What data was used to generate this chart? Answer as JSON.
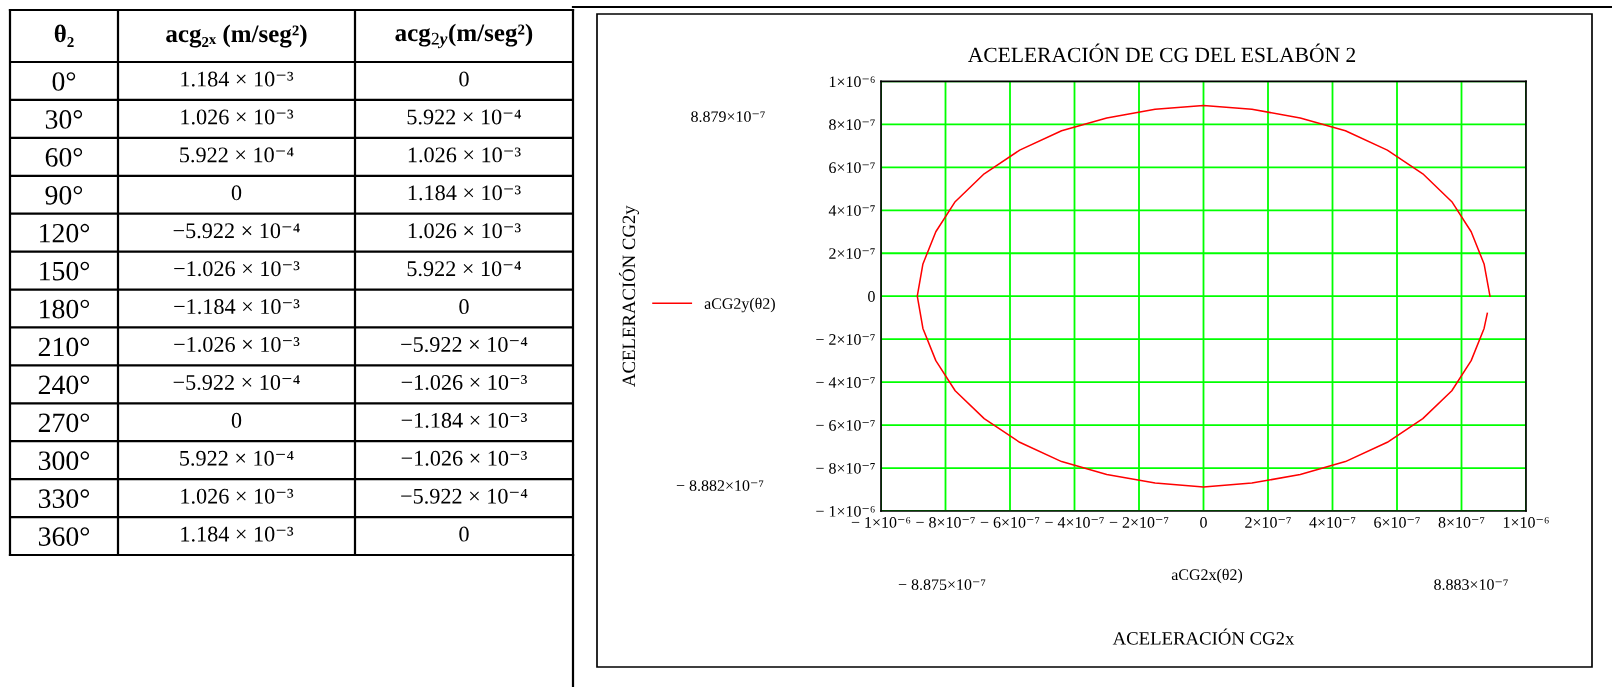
{
  "chart_data": [
    {
      "type": "heatmap",
      "ylabel": "θ₂",
      "categories": [
        "acg₂ₓ (m/seg²)",
        "acg$_{2y}$(m/seg²)"
      ],
      "y_categories": [
        "0°",
        "30°",
        "60°",
        "90°",
        "120°",
        "150°",
        "180°",
        "210°",
        "240°",
        "270°",
        "300°",
        "330°",
        "360°"
      ],
      "cells": [
        [
          null,
          null
        ],
        [
          null,
          null
        ],
        [
          null,
          null
        ],
        [
          null,
          null
        ],
        [
          null,
          null
        ],
        [
          null,
          null
        ],
        [
          null,
          null
        ],
        [
          null,
          null
        ],
        [
          null,
          null
        ],
        [
          null,
          null
        ],
        [
          null,
          null
        ],
        [
          null,
          null
        ],
        [
          null,
          null
        ]
      ],
      "cell_labels": [
        [
          "1.184 × 10⁻³",
          "0"
        ],
        [
          "1.026 × 10⁻³",
          "5.922 × 10⁻⁴"
        ],
        [
          "5.922 × 10⁻⁴",
          "1.026 × 10⁻³"
        ],
        [
          "0",
          "1.184 × 10⁻³"
        ],
        [
          "−5.922 × 10⁻⁴",
          "1.026 × 10⁻³"
        ],
        [
          "−1.026 × 10⁻³",
          "5.922 × 10⁻⁴"
        ],
        [
          "−1.184 × 10⁻³",
          "0"
        ],
        [
          "−1.026 × 10⁻³",
          "−5.922 × 10⁻⁴"
        ],
        [
          "−5.922 × 10⁻⁴",
          "−1.026 × 10⁻³"
        ],
        [
          "0",
          "−1.184 × 10⁻³"
        ],
        [
          "5.922 × 10⁻⁴",
          "−1.026 × 10⁻³"
        ],
        [
          "1.026 × 10⁻³",
          "−5.922 × 10⁻⁴"
        ],
        [
          "1.184 × 10⁻³",
          "0"
        ]
      ],
      "grid": true
    },
    {
      "type": "line",
      "title": "ACELERACIÓN DE CG DEL ESLABÓN 2",
      "xlabel": "ACELERACIÓN CG2x",
      "ylabel": "ACELERACIÓN CG2y",
      "annotations": [
        "8.879×10⁻⁷",
        "− 8.882×10⁻⁷",
        "− 8.875×10⁻⁷",
        "8.883×10⁻⁷",
        "aCG2x(θ2)"
      ],
      "series": [
        {
          "name": "aCG2y(θ2)",
          "color": "#ff0000",
          "x": [
            8.883e-07,
            8.7e-07,
            8.3e-07,
            7.7e-07,
            6.8e-07,
            5.7e-07,
            4.4e-07,
            3e-07,
            1.5e-07,
            0,
            -1.5e-07,
            -3e-07,
            -4.4e-07,
            -5.7e-07,
            -6.8e-07,
            -7.7e-07,
            -8.3e-07,
            -8.7e-07,
            -8.875e-07,
            -8.7e-07,
            -8.3e-07,
            -7.7e-07,
            -6.8e-07,
            -5.7e-07,
            -4.4e-07,
            -3e-07,
            -1.5e-07,
            0,
            1.5e-07,
            3e-07,
            4.4e-07,
            5.7e-07,
            6.8e-07,
            7.7e-07,
            8.3e-07,
            8.7e-07,
            8.8e-07
          ],
          "values": [
            0,
            1.5e-07,
            3e-07,
            4.4e-07,
            5.7e-07,
            6.8e-07,
            7.7e-07,
            8.3e-07,
            8.7e-07,
            8.879e-07,
            8.7e-07,
            8.3e-07,
            7.7e-07,
            6.8e-07,
            5.7e-07,
            4.4e-07,
            3e-07,
            1.5e-07,
            0,
            -1.5e-07,
            -3e-07,
            -4.4e-07,
            -5.7e-07,
            -6.8e-07,
            -7.7e-07,
            -8.3e-07,
            -8.7e-07,
            -8.882e-07,
            -8.7e-07,
            -8.3e-07,
            -7.7e-07,
            -6.8e-07,
            -5.7e-07,
            -4.4e-07,
            -3e-07,
            -1.5e-07,
            -8e-08
          ]
        }
      ],
      "xlim": [
        -1e-06,
        1e-06
      ],
      "ylim": [
        -1e-06,
        1e-06
      ],
      "xticks": [
        {
          "value": -1e-06,
          "label": "− 1×10⁻⁶"
        },
        {
          "value": -8e-07,
          "label": "− 8×10⁻⁷"
        },
        {
          "value": -6e-07,
          "label": "− 6×10⁻⁷"
        },
        {
          "value": -4e-07,
          "label": "− 4×10⁻⁷"
        },
        {
          "value": -2e-07,
          "label": "− 2×10⁻⁷"
        },
        0,
        {
          "value": 2e-07,
          "label": "2×10⁻⁷"
        },
        {
          "value": 4e-07,
          "label": "4×10⁻⁷"
        },
        {
          "value": 6e-07,
          "label": "6×10⁻⁷"
        },
        {
          "value": 8e-07,
          "label": "8×10⁻⁷"
        },
        {
          "value": 1e-06,
          "label": "1×10⁻⁶"
        }
      ],
      "yticks": [
        {
          "value": -1e-06,
          "label": "− 1×10⁻⁶"
        },
        {
          "value": -8e-07,
          "label": "− 8×10⁻⁷"
        },
        {
          "value": -6e-07,
          "label": "− 6×10⁻⁷"
        },
        {
          "value": -4e-07,
          "label": "− 4×10⁻⁷"
        },
        {
          "value": -2e-07,
          "label": "− 2×10⁻⁷"
        },
        0,
        {
          "value": 2e-07,
          "label": "2×10⁻⁷"
        },
        {
          "value": 4e-07,
          "label": "4×10⁻⁷"
        },
        {
          "value": 6e-07,
          "label": "6×10⁻⁷"
        },
        {
          "value": 8e-07,
          "label": "8×10⁻⁷"
        },
        {
          "value": 1e-06,
          "label": "1×10⁻⁶"
        }
      ],
      "grid": true,
      "legend": "left"
    }
  ]
}
